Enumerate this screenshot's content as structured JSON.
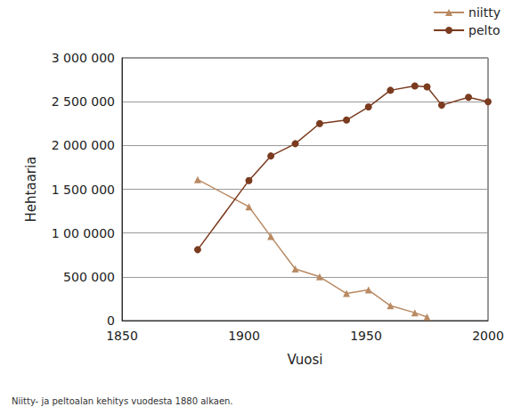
{
  "chart_data": {
    "type": "line",
    "x_label": "Vuosi",
    "y_label": "Hehtaaria",
    "caption": "Niitty- ja peltoalan kehitys vuodesta 1880 alkaen.",
    "xlim": [
      1850,
      2000
    ],
    "xticks": [
      1850,
      1900,
      1950,
      2000
    ],
    "ylim": [
      0,
      3000000
    ],
    "yticks": [
      0,
      {
        "value": 500000,
        "label": "500 000"
      },
      {
        "value": 1000000,
        "label": "1 00 0000"
      },
      {
        "value": 1500000,
        "label": "1 500 000"
      },
      {
        "value": 2000000,
        "label": "2 000 000"
      },
      {
        "value": 2500000,
        "label": "2 500 000"
      },
      {
        "value": 3000000,
        "label": "3 000 000"
      }
    ],
    "grid": true,
    "legend": "upper right",
    "series": [
      {
        "name": "niitty",
        "color": "#b98a63",
        "marker": "triangle",
        "x": [
          1881,
          1902,
          1911,
          1921,
          1931,
          1942,
          1951,
          1960,
          1970,
          1975
        ],
        "values": [
          1610000,
          1300000,
          960000,
          590000,
          500000,
          310000,
          350000,
          170000,
          90000,
          40000
        ]
      },
      {
        "name": "pelto",
        "color": "#7a3b1f",
        "marker": "circle",
        "x": [
          1881,
          1902,
          1911,
          1921,
          1931,
          1942,
          1951,
          1960,
          1970,
          1975,
          1981,
          1992,
          2000
        ],
        "values": [
          810000,
          1600000,
          1880000,
          2020000,
          2250000,
          2290000,
          2440000,
          2630000,
          2680000,
          2670000,
          2460000,
          2550000,
          2500000
        ]
      }
    ]
  }
}
